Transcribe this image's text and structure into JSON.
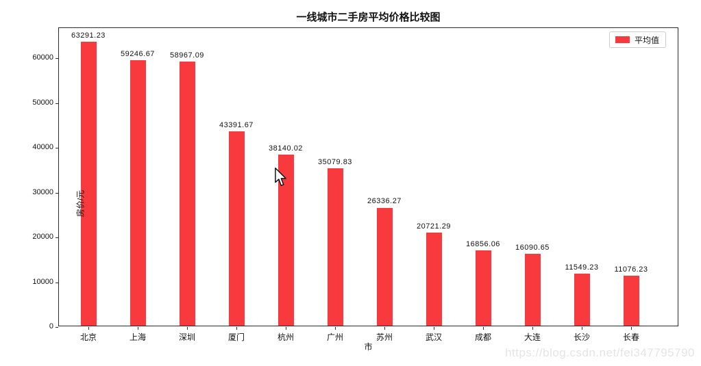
{
  "figure": {
    "title": "一线城市二手房平均价格比较图",
    "watermark": "https://blog.csdn.net/fei347795790"
  },
  "legend": {
    "label": "平均值",
    "swatch_color": "#f83a3e",
    "position": "upper right"
  },
  "axes": {
    "ylabel": "房价/元",
    "xlabel": "市"
  },
  "chart_data": {
    "type": "bar",
    "title": "一线城市二手房平均价格比较图",
    "xlabel": "市",
    "ylabel": "房价/元",
    "categories": [
      "北京",
      "上海",
      "深圳",
      "厦门",
      "杭州",
      "广州",
      "苏州",
      "武汉",
      "成都",
      "大连",
      "长沙",
      "长春"
    ],
    "values": [
      63291.23,
      59246.67,
      58967.09,
      43391.67,
      38140.02,
      35079.83,
      26336.27,
      20721.29,
      16856.06,
      16090.65,
      11549.23,
      11076.23
    ],
    "value_labels": [
      "63291.23",
      "59246.67",
      "58967.09",
      "43391.67",
      "38140.02",
      "35079.83",
      "26336.27",
      "20721.29",
      "16856.06",
      "16090.65",
      "11549.23",
      "11076.23"
    ],
    "yticks": [
      0,
      10000,
      20000,
      30000,
      40000,
      50000,
      60000
    ],
    "ylim": [
      0,
      66456
    ],
    "bar_color": "#f83a3e",
    "grid": false,
    "legend_position": "upper right",
    "legend_entries": [
      "平均值"
    ]
  }
}
